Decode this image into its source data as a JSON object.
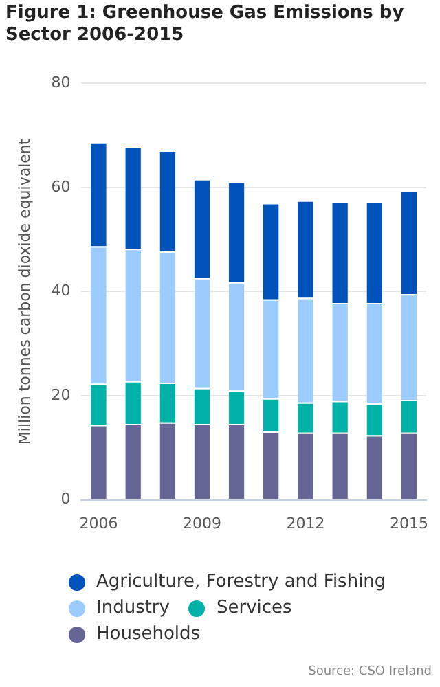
{
  "chart_data": {
    "type": "bar",
    "stacked": true,
    "title": "Figure 1: Greenhouse Gas Emissions by Sector 2006-2015",
    "ylabel": "Million tonnes carbon dioxide equivalent",
    "categories": [
      "2006",
      null,
      null,
      "2009",
      null,
      null,
      "2012",
      null,
      null,
      "2015"
    ],
    "series": [
      {
        "name": "Households",
        "color": "#656596",
        "values": [
          14.4,
          14.6,
          14.9,
          14.6,
          14.6,
          13.1,
          12.9,
          12.9,
          12.4,
          12.9
        ]
      },
      {
        "name": "Services",
        "color": "#00b1a7",
        "values": [
          7.9,
          8.2,
          7.6,
          6.9,
          6.4,
          6.4,
          5.8,
          6.1,
          6.1,
          6.3
        ]
      },
      {
        "name": "Industry",
        "color": "#9ccbff",
        "values": [
          26.4,
          25.4,
          25.2,
          21.1,
          20.8,
          19.0,
          20.1,
          18.8,
          19.3,
          20.3
        ]
      },
      {
        "name": "Agriculture, Forestry and Fishing",
        "color": "#0052bb",
        "values": [
          20.0,
          19.7,
          19.4,
          19.0,
          19.3,
          18.5,
          18.7,
          19.4,
          19.4,
          19.8
        ]
      }
    ],
    "ylim": [
      0,
      80
    ],
    "yticks": [
      0,
      20,
      40,
      60,
      80
    ],
    "grid": "y",
    "legend": "bottom",
    "annotations": [
      "Source: CSO Ireland"
    ]
  }
}
